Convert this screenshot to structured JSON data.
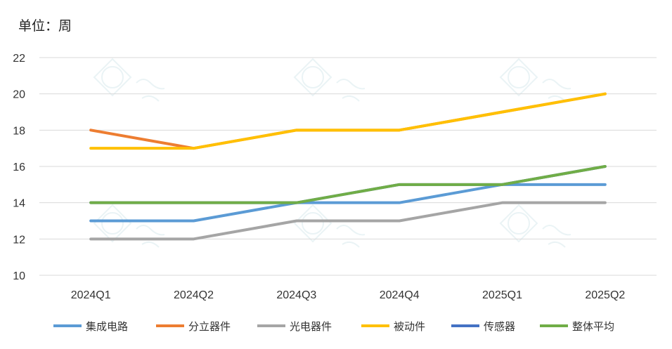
{
  "chart_data": {
    "type": "line",
    "unit_label": "单位：周",
    "categories": [
      "2024Q1",
      "2024Q2",
      "2024Q3",
      "2024Q4",
      "2025Q1",
      "2025Q2"
    ],
    "ylim": [
      10,
      22
    ],
    "yticks": [
      10,
      12,
      14,
      16,
      18,
      20,
      22
    ],
    "grid": true,
    "legend_position": "bottom",
    "series": [
      {
        "name": "集成电路",
        "color": "#5b9bd5",
        "values": [
          13,
          13,
          14,
          14,
          15,
          15
        ]
      },
      {
        "name": "分立器件",
        "color": "#ed7d31",
        "values": [
          18,
          17,
          18,
          18,
          19,
          20
        ]
      },
      {
        "name": "光电器件",
        "color": "#a5a5a5",
        "values": [
          12,
          12,
          13,
          13,
          14,
          14
        ]
      },
      {
        "name": "被动件",
        "color": "#ffc000",
        "values": [
          17,
          17,
          18,
          18,
          19,
          20
        ]
      },
      {
        "name": "传感器",
        "color": "#4472c4",
        "values": [
          14,
          14,
          14,
          15,
          15,
          16
        ]
      },
      {
        "name": "整体平均",
        "color": "#70ad47",
        "values": [
          14,
          14,
          14,
          15,
          15,
          16
        ]
      }
    ]
  }
}
